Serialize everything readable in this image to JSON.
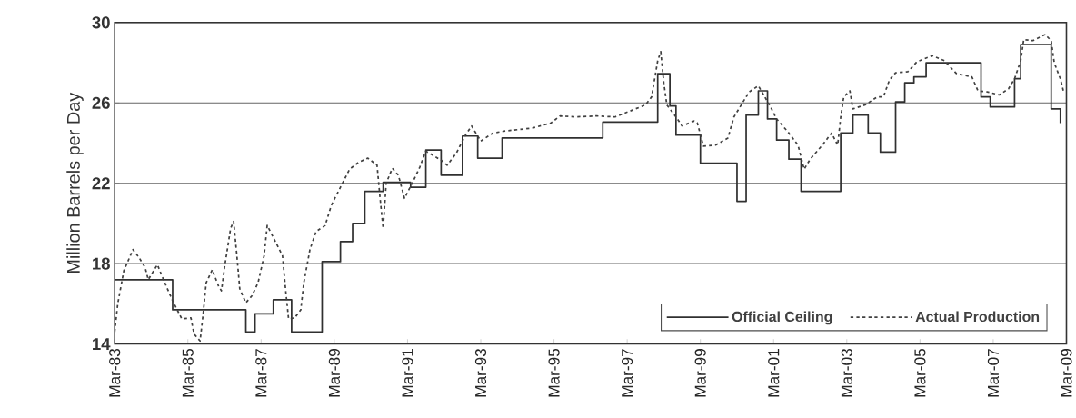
{
  "chart_data": {
    "type": "line",
    "ylabel": "Million Barrels per Day",
    "xlim": [
      "1983-03",
      "2009-03"
    ],
    "ylim": [
      14,
      30
    ],
    "xticks": [
      {
        "value": "1983-03",
        "label": "Mar-83"
      },
      {
        "value": "1985-03",
        "label": "Mar-85"
      },
      {
        "value": "1987-03",
        "label": "Mar-87"
      },
      {
        "value": "1989-03",
        "label": "Mar-89"
      },
      {
        "value": "1991-03",
        "label": "Mar-91"
      },
      {
        "value": "1993-03",
        "label": "Mar-93"
      },
      {
        "value": "1995-03",
        "label": "Mar-95"
      },
      {
        "value": "1997-03",
        "label": "Mar-97"
      },
      {
        "value": "1999-03",
        "label": "Mar-99"
      },
      {
        "value": "2001-03",
        "label": "Mar-01"
      },
      {
        "value": "2003-03",
        "label": "Mar-03"
      },
      {
        "value": "2005-03",
        "label": "Mar-05"
      },
      {
        "value": "2007-03",
        "label": "Mar-07"
      },
      {
        "value": "2009-03",
        "label": "Mar-09"
      }
    ],
    "yticks": [
      14,
      18,
      22,
      26,
      30
    ],
    "grid": "y",
    "legend": "bottom right",
    "series": [
      {
        "name": "Official Ceiling",
        "type": "step",
        "line_style": "solid",
        "color": "#303030",
        "x": [
          "1983-03",
          "1984-10",
          "1986-10",
          "1987-01",
          "1987-07",
          "1988-01",
          "1988-11",
          "1989-05",
          "1989-09",
          "1990-01",
          "1990-07",
          "1991-04",
          "1991-09",
          "1992-02",
          "1992-09",
          "1993-02",
          "1993-10",
          "1996-07",
          "1998-01",
          "1998-05",
          "1998-07",
          "1999-03",
          "2000-03",
          "2000-06",
          "2000-10",
          "2001-01",
          "2001-04",
          "2001-08",
          "2001-12",
          "2003-01",
          "2003-05",
          "2003-10",
          "2004-02",
          "2004-07",
          "2004-10",
          "2005-01",
          "2005-05",
          "2006-11",
          "2007-02",
          "2007-10",
          "2007-12",
          "2008-10",
          "2009-01"
        ],
        "values": [
          17.2,
          15.7,
          14.6,
          15.5,
          16.2,
          14.6,
          18.1,
          19.1,
          20.0,
          21.6,
          22.05,
          21.8,
          23.65,
          22.4,
          24.35,
          23.25,
          24.25,
          25.05,
          27.45,
          25.85,
          24.4,
          23.0,
          21.1,
          25.4,
          26.6,
          25.2,
          24.15,
          23.2,
          21.6,
          24.5,
          25.4,
          24.5,
          23.55,
          26.05,
          27.0,
          27.3,
          28.0,
          26.3,
          25.8,
          27.2,
          28.9,
          25.7,
          25.0
        ]
      },
      {
        "name": "Actual Production",
        "line_style": "dotted",
        "color": "#404040",
        "x": [
          "1983-03",
          "1983-04",
          "1983-06",
          "1983-09",
          "1983-11",
          "1984-01",
          "1984-02",
          "1984-05",
          "1984-07",
          "1984-10",
          "1985-01",
          "1985-04",
          "1985-05",
          "1985-07",
          "1985-08",
          "1985-09",
          "1985-11",
          "1986-01",
          "1986-02",
          "1986-03",
          "1986-05",
          "1986-06",
          "1986-07",
          "1986-08",
          "1986-10",
          "1986-12",
          "1987-02",
          "1987-04",
          "1987-05",
          "1987-08",
          "1987-10",
          "1987-11",
          "1987-12",
          "1988-02",
          "1988-04",
          "1988-05",
          "1988-07",
          "1988-09",
          "1988-12",
          "1989-02",
          "1989-05",
          "1989-08",
          "1989-11",
          "1990-02",
          "1990-05",
          "1990-06",
          "1990-07",
          "1990-08",
          "1990-10",
          "1990-12",
          "1991-02",
          "1991-05",
          "1991-07",
          "1991-09",
          "1992-02",
          "1992-04",
          "1992-07",
          "1992-10",
          "1992-12",
          "1993-03",
          "1993-07",
          "1993-11",
          "1994-08",
          "1995-02",
          "1995-05",
          "1995-10",
          "1996-05",
          "1996-11",
          "1997-04",
          "1997-09",
          "1997-11",
          "1998-01",
          "1998-02",
          "1998-03",
          "1998-04",
          "1998-07",
          "1998-09",
          "1999-01",
          "1999-02",
          "1999-04",
          "1999-08",
          "1999-12",
          "2000-02",
          "2000-05",
          "2000-07",
          "2000-10",
          "2001-02",
          "2001-04",
          "2001-08",
          "2001-11",
          "2002-01",
          "2002-03",
          "2002-07",
          "2002-10",
          "2002-12",
          "2003-01",
          "2003-02",
          "2003-04",
          "2003-05",
          "2003-09",
          "2004-01",
          "2004-03",
          "2004-05",
          "2004-07",
          "2004-11",
          "2005-02",
          "2005-07",
          "2005-11",
          "2006-03",
          "2006-08",
          "2006-10",
          "2007-01",
          "2007-05",
          "2007-08",
          "2007-10",
          "2007-12",
          "2008-01",
          "2008-04",
          "2008-08",
          "2008-10",
          "2008-11",
          "2009-01",
          "2009-02"
        ],
        "values": [
          14.6,
          16.0,
          17.65,
          18.7,
          18.3,
          17.8,
          17.2,
          17.95,
          17.2,
          16.15,
          15.25,
          15.3,
          14.5,
          14.15,
          15.5,
          17.05,
          17.7,
          16.9,
          16.65,
          17.8,
          19.75,
          20.1,
          18.5,
          16.75,
          16.05,
          16.4,
          17.05,
          18.4,
          19.9,
          19.0,
          18.4,
          16.75,
          15.25,
          15.3,
          15.7,
          17.05,
          18.7,
          19.6,
          19.9,
          20.9,
          21.8,
          22.7,
          23.05,
          23.25,
          22.9,
          21.25,
          19.75,
          22.0,
          22.75,
          22.4,
          21.25,
          22.15,
          22.8,
          23.6,
          23.15,
          22.9,
          23.5,
          24.4,
          24.85,
          24.1,
          24.5,
          24.6,
          24.75,
          25.0,
          25.35,
          25.3,
          25.35,
          25.3,
          25.6,
          25.9,
          26.3,
          28.1,
          28.55,
          27.0,
          25.9,
          25.3,
          24.85,
          25.1,
          25.0,
          23.85,
          23.9,
          24.25,
          25.3,
          26.05,
          26.55,
          26.85,
          25.8,
          25.2,
          24.5,
          23.9,
          22.7,
          23.2,
          23.9,
          24.5,
          23.9,
          25.3,
          26.3,
          26.6,
          25.7,
          25.9,
          26.3,
          26.3,
          27.15,
          27.5,
          27.55,
          28.05,
          28.35,
          28.1,
          27.45,
          27.3,
          26.6,
          26.55,
          26.4,
          26.7,
          27.2,
          28.1,
          29.15,
          29.1,
          29.4,
          29.1,
          28.0,
          27.2,
          26.6
        ]
      }
    ]
  }
}
